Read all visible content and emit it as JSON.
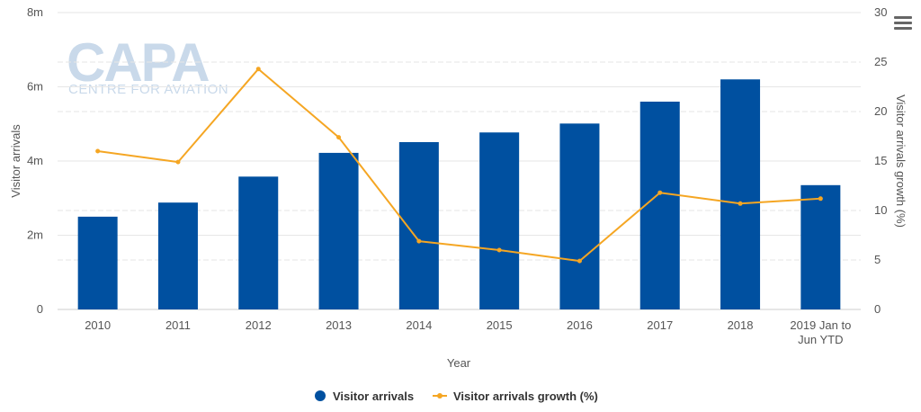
{
  "watermark": {
    "brand": "CAPA",
    "tagline": "CENTRE FOR AVIATION"
  },
  "chart_data": {
    "type": "bar",
    "xlabel": "Year",
    "categories": [
      "2010",
      "2011",
      "2012",
      "2013",
      "2014",
      "2015",
      "2016",
      "2017",
      "2018",
      "2019 Jan to Jun YTD"
    ],
    "category_lines": [
      [
        "2010"
      ],
      [
        "2011"
      ],
      [
        "2012"
      ],
      [
        "2013"
      ],
      [
        "2014"
      ],
      [
        "2015"
      ],
      [
        "2016"
      ],
      [
        "2017"
      ],
      [
        "2018"
      ],
      [
        "2019 Jan to",
        "Jun YTD"
      ]
    ],
    "series": [
      {
        "name": "Visitor arrivals",
        "type": "bar",
        "axis": "left",
        "color": "#0050a0",
        "values": [
          2500000,
          2880000,
          3580000,
          4220000,
          4510000,
          4770000,
          5010000,
          5600000,
          6200000,
          3350000
        ]
      },
      {
        "name": "Visitor arrivals growth (%)",
        "type": "line",
        "axis": "right",
        "color": "#f5a623",
        "values": [
          16.0,
          14.9,
          24.3,
          17.4,
          6.9,
          6.0,
          4.9,
          11.8,
          10.7,
          11.2
        ]
      }
    ],
    "y_left": {
      "label": "Visitor arrivals",
      "ylim": [
        0,
        8000000
      ],
      "ticks": [
        0,
        2000000,
        4000000,
        6000000,
        8000000
      ],
      "tick_labels": [
        "0",
        "2m",
        "4m",
        "6m",
        "8m"
      ]
    },
    "y_right": {
      "label": "Visitor arrivals growth (%)",
      "ylim": [
        0,
        30
      ],
      "ticks": [
        0,
        5,
        10,
        15,
        20,
        25,
        30
      ],
      "tick_labels": [
        "0",
        "5",
        "10",
        "15",
        "20",
        "25",
        "30"
      ]
    },
    "grid": true,
    "legend": "bottom-center"
  }
}
